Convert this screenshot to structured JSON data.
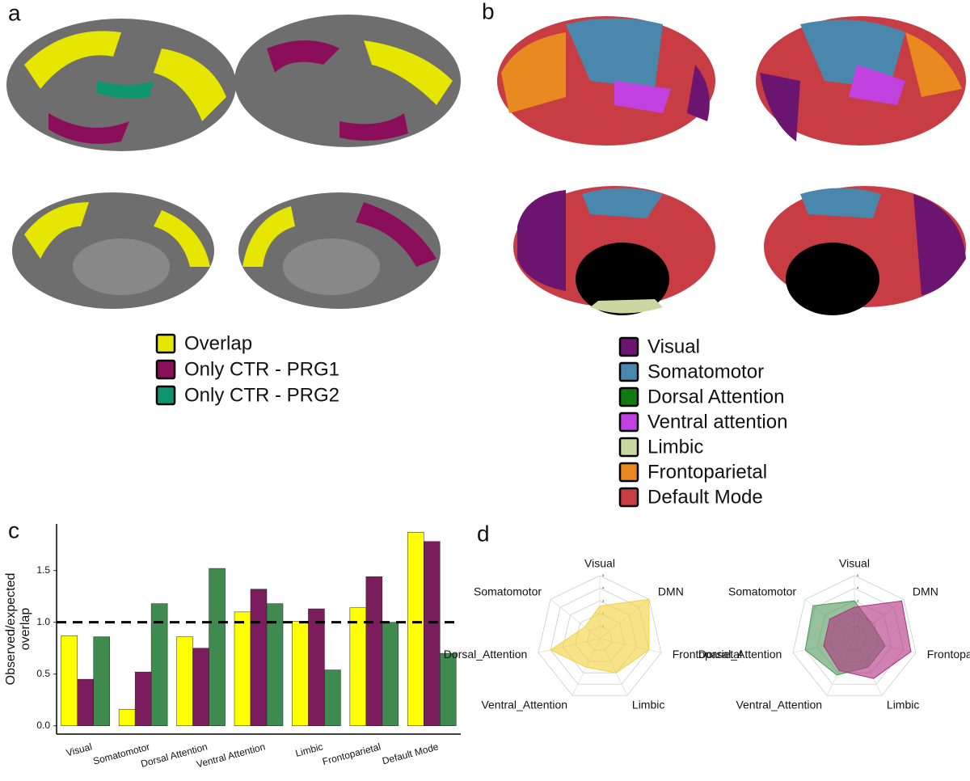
{
  "panel_labels": [
    "a",
    "b",
    "c",
    "d"
  ],
  "brain_legend": [
    {
      "name": "Overlap",
      "color": "#e6e600"
    },
    {
      "name": "Only CTR - PRG1",
      "color": "#8b0e5a"
    },
    {
      "name": "Only CTR - PRG2",
      "color": "#0f9470"
    }
  ],
  "network_legend": [
    {
      "name": "Visual",
      "color": "#6b1470"
    },
    {
      "name": "Somatomotor",
      "color": "#4a87ad"
    },
    {
      "name": "Dorsal Attention",
      "color": "#127a12"
    },
    {
      "name": "Ventral attention",
      "color": "#c040e0"
    },
    {
      "name": "Limbic",
      "color": "#c8d8a0"
    },
    {
      "name": "Frontoparietal",
      "color": "#e88a20"
    },
    {
      "name": "Default Mode",
      "color": "#c83c44"
    }
  ],
  "chart_data": [
    {
      "type": "bar",
      "y_label": [
        "Observed/expected",
        "overlap"
      ],
      "categories": [
        "Visual",
        "Somatomotor",
        "Dorsal Attention",
        "Ventral Attention",
        "Limbic",
        "Frontoparietal",
        "Default Mode"
      ],
      "series": [
        {
          "color": "#ffff00",
          "values": [
            0.87,
            0.16,
            0.86,
            1.1,
            1.01,
            1.14,
            1.87
          ]
        },
        {
          "color": "#7b1c5c",
          "values": [
            0.45,
            0.52,
            0.75,
            1.32,
            1.13,
            1.44,
            1.78
          ]
        },
        {
          "color": "#3e8a4f",
          "values": [
            0.86,
            1.18,
            1.52,
            1.18,
            0.54,
            1.0,
            0.7
          ]
        }
      ],
      "ylim": [
        -0.08,
        1.95
      ],
      "yticks": [
        {
          "value": 0,
          "label": "0.0"
        },
        0.5,
        {
          "value": 1,
          "label": "1.0"
        },
        1.5
      ],
      "hline": 1
    },
    {
      "type": "radar",
      "axes": [
        "Visual",
        "DMN",
        "Frontoparietal",
        "Limbic",
        "Ventral_Attention",
        "Dorsal_Attention",
        "Somatomotor"
      ],
      "rlim": [
        0,
        5
      ],
      "rticks": [
        1,
        2,
        3,
        4,
        5
      ],
      "series": [
        {
          "color": "#f2d23a",
          "values": [
            2.6,
            5.0,
            4.0,
            3.0,
            2.5,
            4.0,
            1.5
          ]
        }
      ]
    },
    {
      "type": "radar",
      "axes": [
        "Visual",
        "DMN",
        "Frontoparietal",
        "Limbic",
        "Ventral_Attention",
        "Dorsal_Attention",
        "Somatomotor"
      ],
      "rlim": [
        0,
        5
      ],
      "rticks": [
        1,
        2,
        3,
        4,
        5
      ],
      "series": [
        {
          "color": "#4e9a5a",
          "values": [
            3.0,
            1.8,
            2.5,
            2.5,
            3.2,
            4.0,
            4.2
          ]
        },
        {
          "color": "#b03080",
          "values": [
            2.5,
            4.8,
            4.6,
            3.5,
            2.8,
            2.5,
            2.5
          ]
        }
      ]
    }
  ]
}
